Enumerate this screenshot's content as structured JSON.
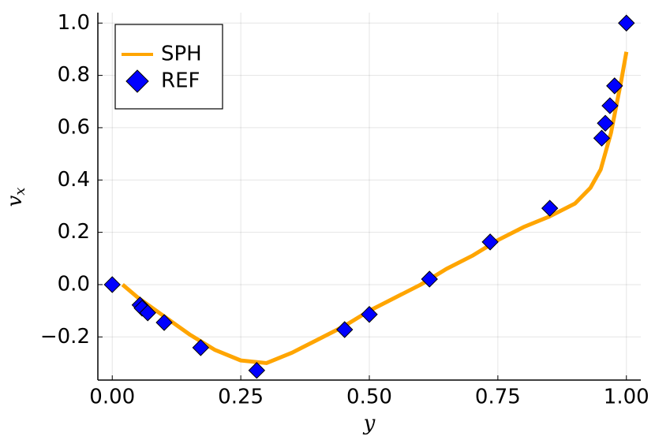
{
  "chart_data": {
    "type": "line-scatter",
    "xlabel": "y",
    "ylabel": "v",
    "ylabel_subscript": "x",
    "xlim": [
      -0.028,
      1.028
    ],
    "ylim": [
      -0.365,
      1.04
    ],
    "xticks": [
      {
        "value": 0,
        "label": "0.00"
      },
      {
        "value": 0.25,
        "label": "0.25"
      },
      {
        "value": 0.5,
        "label": "0.50"
      },
      {
        "value": 0.75,
        "label": "0.75"
      },
      {
        "value": 1,
        "label": "1.00"
      }
    ],
    "yticks": [
      {
        "value": -0.2,
        "label": "−0.2"
      },
      {
        "value": 0,
        "label": "0.0"
      },
      0.2,
      0.4,
      0.6,
      0.8,
      {
        "value": 1,
        "label": "1.0"
      }
    ],
    "grid": true,
    "legend": "upper left",
    "series": [
      {
        "name": "SPH",
        "kind": "line",
        "color": "#ffa500",
        "x": [
          0.02,
          0.05,
          0.1,
          0.15,
          0.2,
          0.25,
          0.3,
          0.35,
          0.4,
          0.45,
          0.5,
          0.55,
          0.6,
          0.65,
          0.7,
          0.75,
          0.8,
          0.85,
          0.9,
          0.93,
          0.95,
          0.97,
          0.98,
          0.99,
          1.0
        ],
        "values": [
          0.0,
          -0.05,
          -0.12,
          -0.19,
          -0.25,
          -0.29,
          -0.3,
          -0.26,
          -0.21,
          -0.16,
          -0.1,
          -0.05,
          0.0,
          0.06,
          0.11,
          0.17,
          0.22,
          0.26,
          0.31,
          0.37,
          0.44,
          0.58,
          0.68,
          0.78,
          0.89
        ]
      },
      {
        "name": "REF",
        "kind": "scatter",
        "color": "#0000ff",
        "x": [
          0,
          0.054,
          0.058,
          0.069,
          0.101,
          0.172,
          0.281,
          0.452,
          0.5,
          0.617,
          0.735,
          0.851,
          0.952,
          0.959,
          0.968,
          0.977,
          1.0
        ],
        "values": [
          0,
          -0.078,
          -0.09,
          -0.108,
          -0.145,
          -0.241,
          -0.328,
          -0.172,
          -0.114,
          0.021,
          0.163,
          0.292,
          0.56,
          0.617,
          0.684,
          0.76,
          1.0
        ]
      }
    ]
  }
}
